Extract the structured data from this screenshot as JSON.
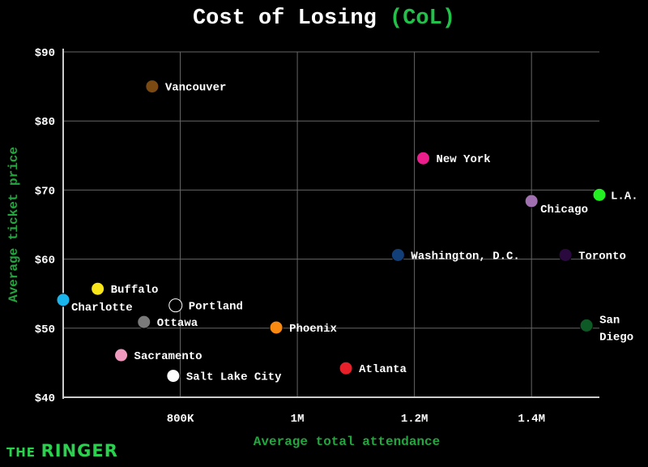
{
  "chart_data": {
    "type": "scatter",
    "title": "Cost of Losing",
    "title_highlight": "(CoL)",
    "xlabel": "Average total attendance",
    "ylabel": "Average ticket price",
    "xlim": [
      600000,
      1516000
    ],
    "ylim": [
      40,
      90
    ],
    "xticks": [
      {
        "value": 800000,
        "label": "800K"
      },
      {
        "value": 1000000,
        "label": "1M"
      },
      {
        "value": 1200000,
        "label": "1.2M"
      },
      {
        "value": 1400000,
        "label": "1.4M"
      }
    ],
    "yticks": [
      {
        "value": 40,
        "label": "$40"
      },
      {
        "value": 50,
        "label": "$50"
      },
      {
        "value": 60,
        "label": "$60"
      },
      {
        "value": 70,
        "label": "$70"
      },
      {
        "value": 80,
        "label": "$80"
      },
      {
        "value": 90,
        "label": "$90"
      }
    ],
    "grid": true,
    "points": [
      {
        "name": "Vancouver",
        "x": 752000,
        "y": 85.0,
        "color": "#7a4a12"
      },
      {
        "name": "New York",
        "x": 1215000,
        "y": 74.6,
        "color": "#ec1e8c"
      },
      {
        "name": "L.A.",
        "x": 1516000,
        "y": 69.3,
        "color": "#22ee22"
      },
      {
        "name": "Chicago",
        "x": 1400000,
        "y": 68.4,
        "color": "#a070b0"
      },
      {
        "name": "Washington, D.C.",
        "x": 1172000,
        "y": 60.6,
        "color": "#123f78"
      },
      {
        "name": "Toronto",
        "x": 1458000,
        "y": 60.6,
        "color": "#2a0a3e"
      },
      {
        "name": "Buffalo",
        "x": 659000,
        "y": 55.7,
        "color": "#f8e61a"
      },
      {
        "name": "Charlotte",
        "x": 600000,
        "y": 54.1,
        "color": "#1ab4ec"
      },
      {
        "name": "Portland",
        "x": 792000,
        "y": 53.3,
        "color": "#000000"
      },
      {
        "name": "Ottawa",
        "x": 738000,
        "y": 50.9,
        "color": "#7a7a7a"
      },
      {
        "name": "Phoenix",
        "x": 964000,
        "y": 50.1,
        "color": "#f88a12"
      },
      {
        "name": "San Diego",
        "x": 1494000,
        "y": 50.4,
        "color": "#0e5a26"
      },
      {
        "name": "Sacramento",
        "x": 699000,
        "y": 46.1,
        "color": "#f09abf"
      },
      {
        "name": "Salt Lake City",
        "x": 788000,
        "y": 43.1,
        "color": "#ffffff"
      },
      {
        "name": "Atlanta",
        "x": 1083000,
        "y": 44.2,
        "color": "#e8202a"
      }
    ]
  },
  "branding": {
    "logo_small": "THE",
    "logo_big": "RINGER"
  }
}
